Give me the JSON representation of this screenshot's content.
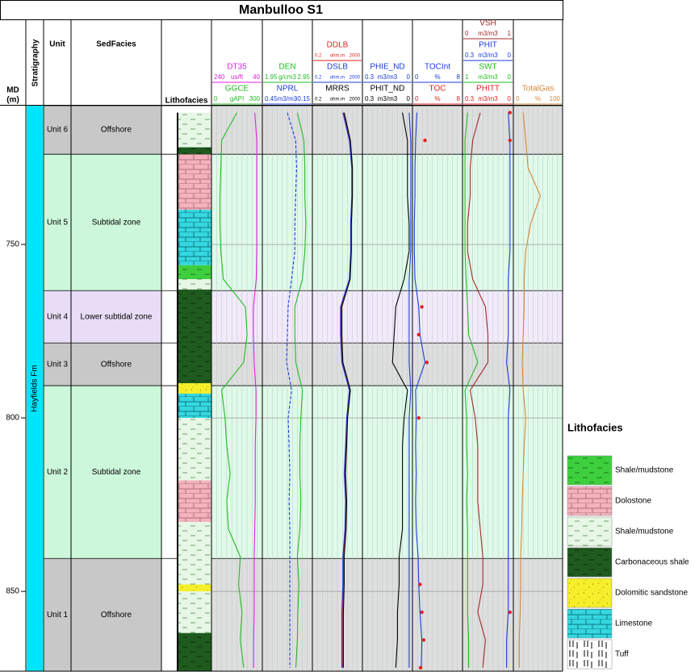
{
  "title": "Manbulloo S1",
  "depth_axis": {
    "label": "MD",
    "unit": "(m)",
    "ylim": [
      710,
      873
    ],
    "yticks": [
      750,
      800,
      850
    ]
  },
  "columns": {
    "stratigraphy": "Stratigraphy",
    "unit": "Unit",
    "sedfacies": "SedFacies",
    "lithofacies": "Lithofacies"
  },
  "stratigraphy": [
    {
      "name": "Hayfields Fm",
      "top": 710,
      "base": 873,
      "color": "#00e5ff"
    }
  ],
  "units": [
    {
      "name": "Unit 6",
      "facies": "Offshore",
      "top": 710,
      "base": 724,
      "color": "#c8c8c8"
    },
    {
      "name": "Unit 5",
      "facies": "Subtidal zone",
      "top": 724,
      "base": 763.3,
      "color": "#ccf7da"
    },
    {
      "name": "Unit 4",
      "facies": "Lower subtidal zone",
      "top": 763.3,
      "base": 778.4,
      "color": "#e9dcf7"
    },
    {
      "name": "Unit 3",
      "facies": "Offshore",
      "top": 778.4,
      "base": 790.7,
      "color": "#c8c8c8"
    },
    {
      "name": "Unit 2",
      "facies": "Subtidal zone",
      "top": 790.7,
      "base": 840.5,
      "color": "#ccf7da"
    },
    {
      "name": "Unit 1",
      "facies": "Offshore",
      "top": 840.5,
      "base": 873,
      "color": "#c8c8c8"
    }
  ],
  "lithology": [
    {
      "top": 712,
      "base": 722,
      "facies": 2
    },
    {
      "top": 722,
      "base": 724,
      "facies": 3
    },
    {
      "top": 724,
      "base": 740,
      "facies": 1
    },
    {
      "top": 740,
      "base": 756,
      "facies": 5
    },
    {
      "top": 756,
      "base": 760,
      "facies": 0
    },
    {
      "top": 760,
      "base": 763,
      "facies": 2
    },
    {
      "top": 763,
      "base": 790,
      "facies": 3
    },
    {
      "top": 790,
      "base": 793,
      "facies": 4
    },
    {
      "top": 793,
      "base": 800,
      "facies": 5
    },
    {
      "top": 800,
      "base": 818,
      "facies": 2
    },
    {
      "top": 818,
      "base": 830,
      "facies": 1
    },
    {
      "top": 830,
      "base": 848,
      "facies": 2
    },
    {
      "top": 848,
      "base": 850,
      "facies": 4
    },
    {
      "top": 850,
      "base": 862,
      "facies": 2
    },
    {
      "top": 862,
      "base": 873,
      "facies": 3
    }
  ],
  "depths": [
    712,
    720,
    728,
    736,
    744,
    752,
    760,
    768,
    776,
    784,
    792,
    800,
    808,
    816,
    824,
    832,
    840,
    848,
    856,
    864,
    872
  ],
  "tracks": [
    {
      "curves": [
        {
          "name": "DT35",
          "color": "#e020e0",
          "scale": [
            240,
            40
          ],
          "unit": "us/ft",
          "style": "line",
          "values": [
            70,
            62,
            62,
            62,
            62,
            62,
            64,
            75,
            75,
            72,
            65,
            65,
            68,
            68,
            68,
            70,
            72,
            72,
            72,
            74,
            74
          ]
        },
        {
          "name": "GGCE",
          "color": "#22bb22",
          "scale": [
            0,
            300
          ],
          "unit": "gAPI",
          "style": "line",
          "values": [
            150,
            60,
            55,
            50,
            50,
            55,
            70,
            200,
            210,
            190,
            60,
            80,
            90,
            110,
            90,
            100,
            170,
            160,
            180,
            170,
            190
          ]
        }
      ]
    },
    {
      "curves": [
        {
          "name": "DEN",
          "color": "#22bb22",
          "scale": [
            1.95,
            2.95
          ],
          "unit": "g/cm3",
          "style": "line",
          "values": [
            2.65,
            2.78,
            2.8,
            2.8,
            2.82,
            2.8,
            2.75,
            2.6,
            2.6,
            2.62,
            2.75,
            2.72,
            2.7,
            2.7,
            2.72,
            2.7,
            2.65,
            2.68,
            2.66,
            2.65,
            2.62
          ]
        },
        {
          "name": "NPRL",
          "color": "#1a3cdc",
          "scale": [
            0.45,
            -0.15
          ],
          "unit": "m3/m3",
          "style": "dash",
          "values": [
            0.15,
            0.05,
            0.04,
            0.05,
            0.06,
            0.06,
            0.1,
            0.14,
            0.15,
            0.16,
            0.1,
            0.14,
            0.13,
            0.12,
            0.13,
            0.12,
            0.12,
            0.12,
            0.12,
            0.12,
            0.12
          ]
        }
      ]
    },
    {
      "log": true,
      "curves": [
        {
          "name": "DDLB",
          "color": "#e02020",
          "scale": [
            0.2,
            2000
          ],
          "unit": "ohm.m",
          "style": "line",
          "values": [
            60,
            200,
            300,
            300,
            250,
            250,
            200,
            40,
            40,
            50,
            200,
            120,
            100,
            80,
            100,
            90,
            60,
            60,
            50,
            50,
            50
          ]
        },
        {
          "name": "DSLB",
          "color": "#1a3cdc",
          "scale": [
            0.2,
            2000
          ],
          "unit": "ohm.m",
          "style": "line",
          "values": [
            55,
            180,
            280,
            280,
            230,
            230,
            180,
            35,
            35,
            45,
            180,
            110,
            90,
            70,
            90,
            80,
            55,
            55,
            45,
            45,
            45
          ]
        },
        {
          "name": "MRRS",
          "color": "#000000",
          "scale": [
            0.2,
            2000
          ],
          "unit": "ohm.m",
          "style": "line",
          "values": [
            70,
            220,
            320,
            320,
            260,
            260,
            210,
            45,
            45,
            55,
            220,
            130,
            110,
            90,
            110,
            100,
            70,
            70,
            60,
            60,
            60
          ]
        }
      ]
    },
    {
      "curves": [
        {
          "name": "PHIE_ND",
          "color": "#1a3cdc",
          "scale": [
            0.3,
            0
          ],
          "unit": "m3/m3",
          "style": "line",
          "values": [
            0.02,
            0.01,
            0.01,
            0.01,
            0.01,
            0.01,
            0.02,
            0.02,
            0.02,
            0.02,
            0.01,
            0.02,
            0.02,
            0.02,
            0.02,
            0.02,
            0.02,
            0.02,
            0.02,
            0.02,
            0.02
          ]
        },
        {
          "name": "PHIT_ND",
          "color": "#000000",
          "scale": [
            0.3,
            0
          ],
          "unit": "m3/m3",
          "style": "line",
          "values": [
            0.06,
            0.03,
            0.03,
            0.03,
            0.02,
            0.02,
            0.05,
            0.1,
            0.11,
            0.12,
            0.03,
            0.05,
            0.06,
            0.06,
            0.06,
            0.06,
            0.08,
            0.08,
            0.09,
            0.09,
            0.1
          ]
        }
      ]
    },
    {
      "curves": [
        {
          "name": "TOCInt",
          "color": "#1a3cdc",
          "scale": [
            0,
            8
          ],
          "unit": "%",
          "style": "line",
          "values": [
            0.7,
            0.5,
            0.4,
            0.4,
            0.3,
            0.3,
            0.4,
            1.0,
            1.2,
            2.0,
            0.5,
            0.6,
            0.5,
            0.6,
            0.5,
            0.6,
            0.9,
            1.0,
            1.2,
            1.5,
            1.4
          ]
        },
        {
          "name": "TOC",
          "color": "#e02020",
          "scale": [
            0,
            8
          ],
          "unit": "%",
          "style": "dots",
          "values": [
            null,
            2.0,
            null,
            null,
            null,
            null,
            null,
            1.5,
            1.0,
            2.3,
            null,
            1.0,
            null,
            null,
            null,
            null,
            null,
            1.2,
            1.5,
            1.8,
            1.3
          ]
        }
      ]
    },
    {
      "curves": [
        {
          "name": "VSH",
          "color": "#a52a2a",
          "scale": [
            0,
            1
          ],
          "unit": "m3/m3",
          "style": "line",
          "values": [
            0.35,
            0.2,
            0.15,
            0.15,
            0.1,
            0.1,
            0.2,
            0.45,
            0.5,
            0.5,
            0.15,
            0.25,
            0.3,
            0.3,
            0.3,
            0.35,
            0.4,
            0.4,
            0.3,
            0.45,
            0.4
          ]
        },
        {
          "name": "PHIT",
          "color": "#1a3cdc",
          "scale": [
            0.3,
            0
          ],
          "unit": "m3/m3",
          "style": "line",
          "values": [
            0.03,
            0.02,
            0.02,
            0.02,
            0.02,
            0.02,
            0.03,
            0.03,
            0.03,
            0.04,
            0.02,
            0.03,
            0.03,
            0.03,
            0.03,
            0.03,
            0.03,
            0.03,
            0.03,
            0.04,
            0.04
          ]
        },
        {
          "name": "SWT",
          "color": "#22bb22",
          "scale": [
            1,
            0
          ],
          "unit": "m3/m3",
          "style": "line",
          "values": [
            0.9,
            0.95,
            0.95,
            0.95,
            0.95,
            0.95,
            0.93,
            0.9,
            0.88,
            0.7,
            0.95,
            0.92,
            0.92,
            0.9,
            0.92,
            0.9,
            0.9,
            0.9,
            0.9,
            0.88,
            0.88
          ]
        },
        {
          "name": "PHITT",
          "color": "#e02020",
          "scale": [
            0.3,
            0
          ],
          "unit": "m3/m3",
          "style": "dots",
          "values": [
            0.02,
            0.02,
            null,
            null,
            null,
            null,
            null,
            null,
            null,
            null,
            null,
            null,
            null,
            null,
            null,
            null,
            null,
            null,
            0.02,
            null,
            null
          ]
        }
      ]
    },
    {
      "curves": [
        {
          "name": "TotalGas",
          "color": "#d2883a",
          "scale": [
            0,
            100
          ],
          "unit": "%",
          "style": "line",
          "values": [
            20,
            25,
            30,
            55,
            35,
            25,
            22,
            22,
            20,
            18,
            20,
            25,
            22,
            20,
            18,
            17,
            15,
            15,
            14,
            12,
            12
          ]
        }
      ]
    }
  ],
  "legend": {
    "title": "Lithofacies",
    "items": [
      {
        "name": "Shale/mudstone",
        "color": "#3ecf3e"
      },
      {
        "name": "Dolostone",
        "color": "#f2b3bd"
      },
      {
        "name": "Shale/mudstone",
        "color": "#e6f7e6"
      },
      {
        "name": "Carbonaceous shale",
        "color": "#1f5a1f"
      },
      {
        "name": "Dolomitic sandstone",
        "color": "#f5ee2a"
      },
      {
        "name": "Limestone",
        "color": "#35d7e0"
      },
      {
        "name": "Tuff",
        "color": "#ffffff"
      }
    ]
  }
}
